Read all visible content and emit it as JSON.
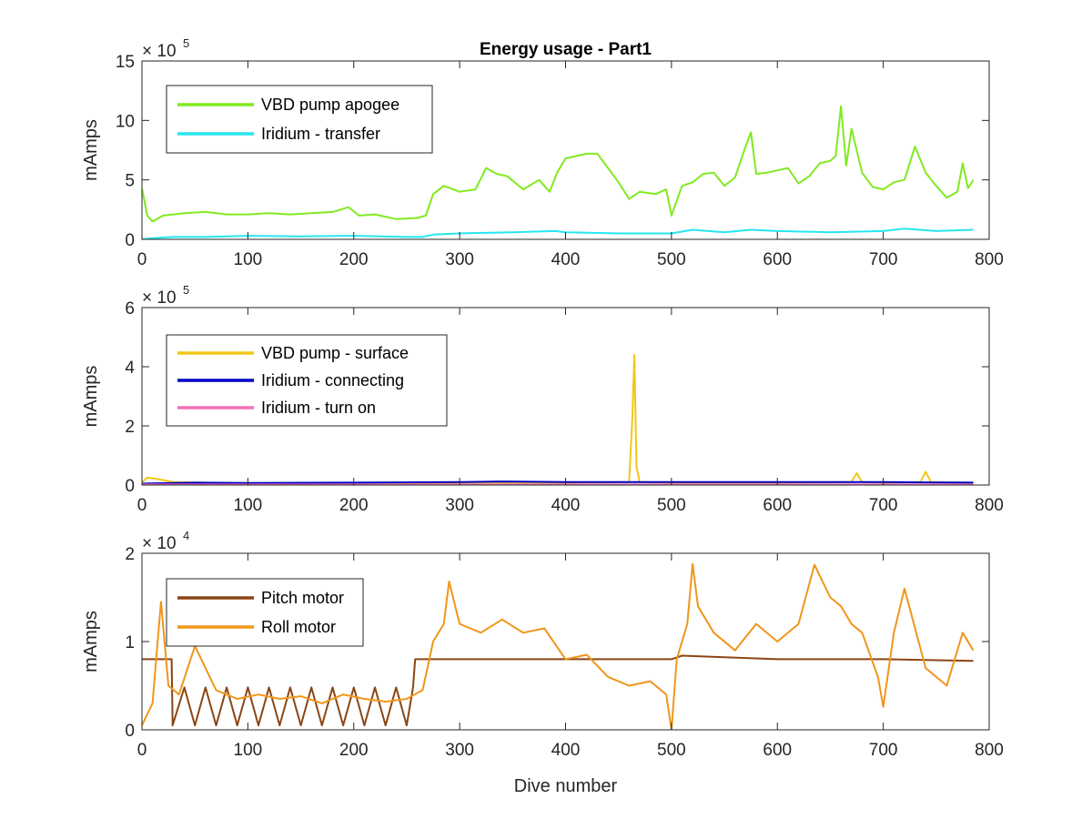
{
  "figure": {
    "title": "Energy usage - Part1"
  },
  "chart_data": [
    {
      "type": "line",
      "title": "Energy usage - Part1",
      "xlabel": "",
      "ylabel": "mAmps",
      "xlim": [
        0,
        800
      ],
      "ylim": [
        0,
        1500000
      ],
      "x_ticks": [
        0,
        100,
        200,
        300,
        400,
        500,
        600,
        700,
        800
      ],
      "y_ticks": [
        0,
        500000,
        1000000,
        1500000
      ],
      "y_tick_labels": [
        "0",
        "5",
        "10",
        "15"
      ],
      "y_exponent_base": "× 10",
      "y_exponent_power": "5",
      "legend_position": "top-left",
      "grid": false,
      "series": [
        {
          "name": "VBD pump apogee",
          "color": "#80ea20",
          "x": [
            0,
            5,
            10,
            20,
            40,
            60,
            80,
            100,
            120,
            140,
            160,
            180,
            195,
            205,
            220,
            240,
            260,
            268,
            275,
            285,
            300,
            315,
            325,
            335,
            345,
            360,
            375,
            385,
            392,
            400,
            410,
            420,
            430,
            440,
            450,
            460,
            470,
            485,
            495,
            500,
            510,
            520,
            530,
            540,
            550,
            560,
            570,
            575,
            580,
            590,
            600,
            610,
            620,
            630,
            640,
            650,
            655,
            660,
            665,
            670,
            680,
            690,
            700,
            710,
            720,
            730,
            740,
            750,
            760,
            770,
            775,
            780,
            785
          ],
          "y": [
            430000,
            200000,
            150000,
            200000,
            220000,
            230000,
            210000,
            210000,
            220000,
            210000,
            220000,
            230000,
            270000,
            200000,
            210000,
            170000,
            180000,
            200000,
            380000,
            450000,
            400000,
            420000,
            600000,
            550000,
            530000,
            420000,
            500000,
            400000,
            560000,
            680000,
            700000,
            720000,
            720000,
            600000,
            480000,
            340000,
            400000,
            380000,
            420000,
            200000,
            450000,
            480000,
            550000,
            560000,
            450000,
            520000,
            780000,
            900000,
            550000,
            560000,
            580000,
            600000,
            470000,
            530000,
            640000,
            660000,
            700000,
            1120000,
            620000,
            930000,
            560000,
            440000,
            420000,
            480000,
            500000,
            780000,
            560000,
            450000,
            350000,
            400000,
            640000,
            430000,
            500000
          ]
        },
        {
          "name": "Iridium - transfer",
          "color": "#26e6f0",
          "x": [
            0,
            10,
            30,
            60,
            100,
            150,
            200,
            250,
            265,
            275,
            300,
            350,
            390,
            400,
            450,
            500,
            520,
            550,
            575,
            600,
            650,
            700,
            720,
            750,
            785
          ],
          "y": [
            0,
            10000,
            20000,
            20000,
            30000,
            25000,
            30000,
            20000,
            20000,
            40000,
            50000,
            60000,
            70000,
            60000,
            50000,
            50000,
            80000,
            60000,
            80000,
            70000,
            60000,
            70000,
            90000,
            70000,
            80000
          ]
        }
      ]
    },
    {
      "type": "line",
      "title": "",
      "xlabel": "",
      "ylabel": "mAmps",
      "xlim": [
        0,
        800
      ],
      "ylim": [
        0,
        600000
      ],
      "x_ticks": [
        0,
        100,
        200,
        300,
        400,
        500,
        600,
        700,
        800
      ],
      "y_ticks": [
        0,
        200000,
        400000,
        600000
      ],
      "y_tick_labels": [
        "0",
        "2",
        "4",
        "6"
      ],
      "y_exponent_base": "× 10",
      "y_exponent_power": "5",
      "legend_position": "top-left",
      "grid": false,
      "series": [
        {
          "name": "VBD pump - surface",
          "color": "#f2c619",
          "x": [
            0,
            5,
            15,
            30,
            100,
            200,
            300,
            400,
            460,
            463,
            465,
            467,
            470,
            500,
            600,
            670,
            675,
            680,
            700,
            735,
            740,
            745,
            785
          ],
          "y": [
            10000,
            25000,
            20000,
            10000,
            5000,
            5000,
            8000,
            8000,
            10000,
            220000,
            440000,
            60000,
            10000,
            8000,
            8000,
            10000,
            40000,
            10000,
            8000,
            10000,
            45000,
            10000,
            8000
          ]
        },
        {
          "name": "Iridium - connecting",
          "color": "#0000c8",
          "x": [
            0,
            50,
            100,
            200,
            300,
            340,
            400,
            500,
            600,
            700,
            785
          ],
          "y": [
            5000,
            8000,
            7000,
            8000,
            10000,
            12000,
            10000,
            10000,
            10000,
            10000,
            8000
          ]
        },
        {
          "name": "Iridium - turn on",
          "color": "#f270ba",
          "x": [
            0,
            200,
            400,
            600,
            785
          ],
          "y": [
            2000,
            2000,
            2000,
            2000,
            2000
          ]
        }
      ]
    },
    {
      "type": "line",
      "title": "",
      "xlabel": "Dive number",
      "ylabel": "mAmps",
      "xlim": [
        0,
        800
      ],
      "ylim": [
        0,
        20000
      ],
      "x_ticks": [
        0,
        100,
        200,
        300,
        400,
        500,
        600,
        700,
        800
      ],
      "y_ticks": [
        0,
        10000,
        20000
      ],
      "y_tick_labels": [
        "0",
        "1",
        "2"
      ],
      "y_exponent_base": "× 10",
      "y_exponent_power": "4",
      "legend_position": "top-left",
      "grid": false,
      "series": [
        {
          "name": "Pitch motor",
          "color": "#8b4513",
          "x": [
            0,
            28,
            29,
            40,
            50,
            60,
            70,
            80,
            90,
            100,
            110,
            120,
            130,
            140,
            150,
            160,
            170,
            180,
            190,
            200,
            210,
            220,
            230,
            240,
            250,
            256,
            258,
            300,
            400,
            500,
            510,
            600,
            700,
            785
          ],
          "y": [
            8000,
            8000,
            500,
            4800,
            500,
            4800,
            500,
            4800,
            500,
            4800,
            500,
            4800,
            500,
            4800,
            500,
            4800,
            500,
            4800,
            500,
            4800,
            500,
            4800,
            500,
            4800,
            500,
            4800,
            8000,
            8000,
            8000,
            8000,
            8400,
            8000,
            8000,
            7800
          ]
        },
        {
          "name": "Roll motor",
          "color": "#f0961a",
          "x": [
            0,
            10,
            18,
            25,
            35,
            50,
            70,
            90,
            110,
            130,
            150,
            170,
            190,
            210,
            230,
            250,
            265,
            275,
            285,
            290,
            300,
            320,
            340,
            360,
            380,
            400,
            420,
            440,
            460,
            480,
            495,
            500,
            505,
            515,
            520,
            525,
            540,
            560,
            580,
            600,
            620,
            635,
            650,
            660,
            670,
            680,
            695,
            700,
            710,
            720,
            740,
            760,
            775,
            785
          ],
          "y": [
            500,
            3000,
            14500,
            5000,
            4000,
            9500,
            4500,
            3500,
            4000,
            3500,
            3800,
            3000,
            4000,
            3500,
            3200,
            3500,
            4500,
            10000,
            12000,
            16800,
            12000,
            11000,
            12500,
            11000,
            11500,
            8000,
            8500,
            6000,
            5000,
            5500,
            4000,
            0,
            8000,
            12000,
            18800,
            14000,
            11000,
            9000,
            12000,
            10000,
            12000,
            18700,
            15000,
            14000,
            12000,
            11000,
            6000,
            2600,
            11000,
            16000,
            7000,
            5000,
            11000,
            9000
          ]
        }
      ]
    }
  ]
}
